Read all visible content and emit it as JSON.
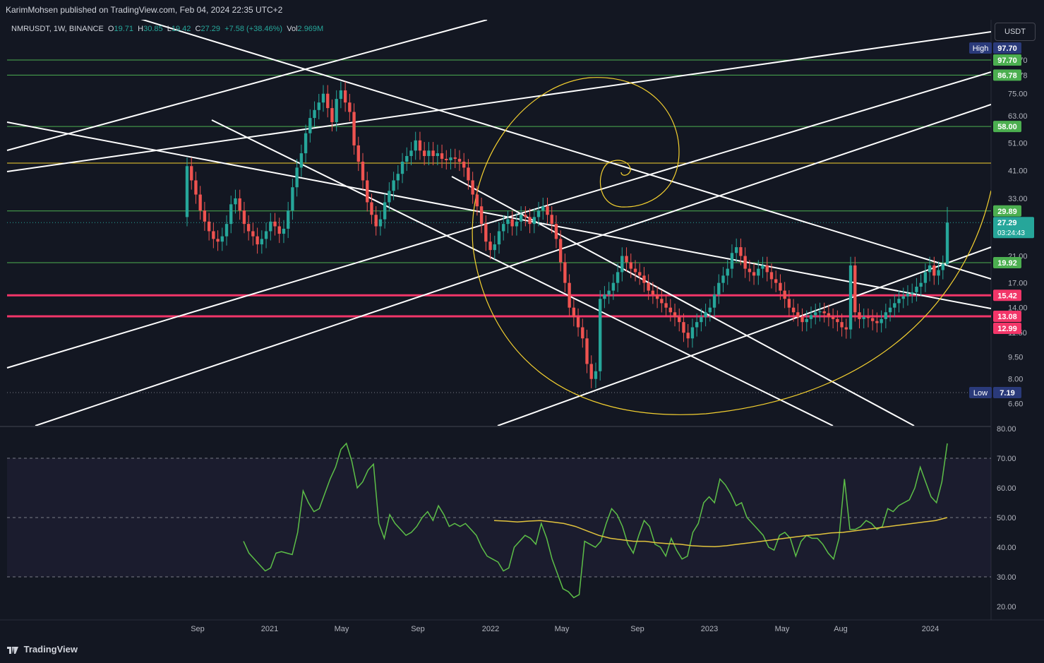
{
  "header": {
    "publisher": "KarimMohsen published on TradingView.com, Feb 04, 2024 22:35 UTC+2"
  },
  "legend": {
    "symbol": "NMRUSDT, 1W, BINANCE",
    "o_label": "O",
    "o": "19.71",
    "h_label": "H",
    "h": "30.85",
    "l_label": "L",
    "l": "19.42",
    "c_label": "C",
    "c": "27.29",
    "change": "+7.58 (+38.46%)",
    "vol_label": "Vol",
    "vol": "2.969M"
  },
  "currency_button": "USDT",
  "footer": {
    "brand": "TradingView"
  },
  "colors": {
    "up": "#26a69a",
    "down": "#ef5350",
    "green_line": "#4caf50",
    "red_line": "#f23669",
    "yellow": "#f5d130",
    "rsi": "#5dbf48",
    "rsi_ma": "#e1c33d",
    "bg": "#131722"
  },
  "chart_data": [
    {
      "type": "candlestick",
      "title": "",
      "y_scale": "log",
      "ylim": [
        6.0,
        115.0
      ],
      "x_ticks": [
        "Sep",
        "2021",
        "May",
        "Sep",
        "2022",
        "May",
        "Sep",
        "2023",
        "May",
        "Aug",
        "2024"
      ],
      "y_ticks": [
        "97.70",
        "86.78",
        "75.00",
        "63.00",
        "51.00",
        "41.00",
        "33.00",
        "27.00",
        "21.00",
        "17.00",
        "14.00",
        "11.50",
        "9.50",
        "8.00",
        "6.60"
      ],
      "horizontal_levels": [
        {
          "value": 97.7,
          "label": "97.70",
          "color": "#4caf50"
        },
        {
          "value": 86.78,
          "label": "86.78",
          "color": "#4caf50"
        },
        {
          "value": 58.0,
          "label": "58.00",
          "color": "#4caf50"
        },
        {
          "value": 43.5,
          "label": "",
          "color": "#f5d130"
        },
        {
          "value": 29.89,
          "label": "29.89",
          "color": "#4caf50"
        },
        {
          "value": 19.92,
          "label": "19.92",
          "color": "#4caf50"
        },
        {
          "value": 15.42,
          "label": "15.42",
          "color": "#f23669"
        },
        {
          "value": 13.08,
          "label": "13.08",
          "color": "#f23669"
        }
      ],
      "price_tags": [
        {
          "value": 97.7,
          "label": "97.70",
          "prefix": "High",
          "color": "#2a3a7a"
        },
        {
          "value": 97.7,
          "label": "97.70",
          "prefix": "",
          "color": "#4caf50"
        },
        {
          "value": 27.29,
          "label": "27.29",
          "sub": "03:24:43",
          "prefix": "",
          "color": "#26a69a"
        },
        {
          "value": 12.99,
          "label": "12.99",
          "prefix": "",
          "color": "#f23669"
        },
        {
          "value": 7.19,
          "label": "7.19",
          "prefix": "Low",
          "color": "#2a3a7a"
        }
      ],
      "series": [
        {
          "name": "",
          "closes": [
            42.5,
            38.0,
            34.0,
            30.0,
            27.5,
            25.5,
            24.0,
            23.5,
            24.5,
            27.0,
            31.5,
            33.0,
            30.0,
            27.0,
            25.5,
            24.5,
            23.0,
            24.0,
            25.5,
            27.5,
            26.5,
            25.0,
            26.0,
            30.0,
            36.0,
            42.0,
            47.0,
            55.0,
            62.0,
            66.0,
            70.0,
            75.0,
            67.0,
            60.0,
            72.0,
            77.0,
            70.0,
            65.0,
            50.0,
            44.0,
            38.0,
            32.0,
            29.0,
            26.5,
            28.0,
            32.0,
            35.0,
            38.0,
            40.0,
            44.0,
            46.0,
            48.0,
            52.0,
            48.0,
            46.0,
            48.0,
            46.0,
            47.0,
            45.0,
            44.5,
            45.5,
            45.0,
            44.0,
            42.0,
            38.0,
            34.0,
            31.0,
            27.0,
            23.5,
            22.0,
            23.0,
            25.5,
            27.0,
            28.0,
            26.5,
            27.5,
            29.0,
            28.5,
            27.0,
            28.5,
            30.0,
            31.0,
            29.0,
            27.0,
            24.0,
            20.0,
            17.0,
            14.0,
            13.0,
            12.0,
            11.0,
            9.0,
            8.0,
            8.5,
            15.0,
            15.5,
            16.0,
            17.0,
            18.5,
            21.0,
            20.0,
            19.0,
            18.5,
            18.0,
            17.0,
            16.0,
            15.5,
            15.0,
            14.5,
            14.0,
            13.5,
            13.0,
            12.5,
            11.5,
            11.0,
            12.0,
            12.5,
            13.0,
            13.5,
            14.0,
            15.5,
            17.0,
            18.0,
            19.0,
            21.5,
            22.5,
            21.0,
            19.0,
            18.5,
            18.0,
            19.0,
            19.5,
            18.5,
            17.5,
            17.0,
            16.0,
            15.0,
            14.0,
            13.5,
            13.0,
            12.5,
            12.8,
            13.2,
            13.5,
            13.6,
            13.4,
            13.0,
            12.8,
            12.5,
            12.0,
            11.8,
            19.5,
            13.5,
            12.8,
            13.0,
            12.9,
            12.6,
            12.4,
            12.8,
            13.5,
            14.0,
            14.5,
            15.0,
            15.3,
            15.6,
            15.8,
            16.5,
            17.0,
            18.5,
            19.5,
            18.0,
            18.8,
            19.7,
            27.29
          ]
        }
      ]
    },
    {
      "type": "line",
      "title": "",
      "ylim": [
        18.0,
        80.0
      ],
      "y_ticks": [
        "80.00",
        "70.00",
        "60.00",
        "50.00",
        "40.00",
        "30.00",
        "20.00"
      ],
      "bands": {
        "upper": 70,
        "middle": 50,
        "lower": 30
      },
      "series": [
        {
          "name": "",
          "values": [
            42,
            38,
            36,
            34,
            32,
            33,
            38,
            38.5,
            38,
            37.5,
            45,
            59,
            55,
            52,
            53,
            58,
            63,
            67,
            73,
            75,
            69,
            60,
            62,
            66,
            68,
            48,
            43,
            51,
            48,
            46,
            44,
            45,
            47,
            50,
            52,
            49,
            54,
            51,
            47,
            48,
            47,
            48,
            46,
            44,
            40,
            37,
            36,
            35,
            32,
            33,
            40,
            42,
            44,
            43,
            41,
            48,
            43,
            36,
            31,
            26,
            25,
            23,
            24,
            42,
            41,
            40,
            42,
            48,
            53,
            51,
            47,
            41,
            38,
            44,
            49,
            47,
            41,
            40,
            37,
            43,
            39,
            36,
            37,
            45,
            48,
            55,
            57,
            55,
            63,
            61,
            58,
            54,
            55,
            50,
            48,
            46,
            44,
            40,
            39,
            44,
            45,
            43,
            37,
            42,
            44,
            43,
            43,
            41,
            38,
            36,
            43,
            63,
            46,
            46,
            47,
            49,
            48,
            46,
            47,
            53,
            52,
            54,
            55,
            56,
            60,
            67,
            62,
            57,
            55,
            62,
            75
          ]
        },
        {
          "name": "",
          "values": [
            49,
            48.8,
            48.5,
            48.8,
            49,
            48.5,
            48,
            47,
            45.5,
            44,
            43,
            42.5,
            42,
            42,
            41.5,
            41.2,
            41,
            40.5,
            40.3,
            40.2,
            40.5,
            41,
            41.5,
            42,
            42.5,
            43,
            43.5,
            44,
            44.3,
            44.8,
            45,
            45.5,
            46,
            46.5,
            47,
            47.5,
            48,
            48.5,
            49,
            50
          ]
        }
      ]
    }
  ]
}
